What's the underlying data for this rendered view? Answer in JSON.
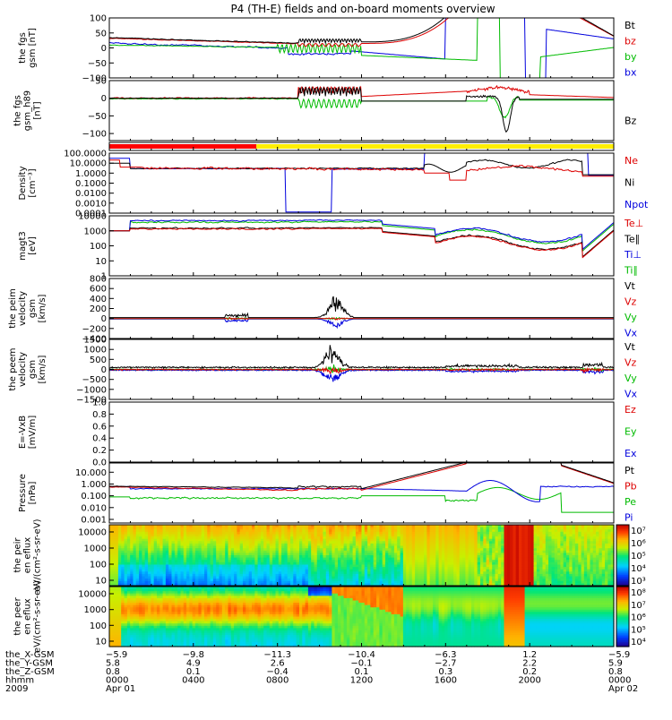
{
  "title": "P4 (TH-E) fields and on-board moments overview",
  "chart_data": [
    {
      "type": "line",
      "ylabel": "the fgs gsm [nT]",
      "ylim": [
        -100,
        100
      ],
      "ytick_labels": [
        "100",
        "50",
        "0",
        "−50",
        "−100"
      ],
      "legend": [
        "Bt",
        "bz",
        "by",
        "bx"
      ],
      "legend_colors": [
        "#000000",
        "#dd0000",
        "#00bb00",
        "#0000dd"
      ]
    },
    {
      "type": "line",
      "ylabel": "the fgs gsm_h89 [nT]",
      "ylim": [
        -120,
        50
      ],
      "ytick_labels": [
        "50",
        "0",
        "−50",
        "−100"
      ],
      "legend": [
        "Bz"
      ],
      "legend_colors": [
        "#000000"
      ]
    },
    {
      "type": "status_bar",
      "segments": [
        {
          "from_hour": 0,
          "to_hour": 7,
          "color": "#ff0000"
        },
        {
          "from_hour": 7,
          "to_hour": 24,
          "color": "#ffee00"
        }
      ]
    },
    {
      "type": "line",
      "yscale": "log",
      "ylabel": "Density [cm⁻³]",
      "ylim": [
        0.0001,
        100
      ],
      "ytick_labels": [
        "100.0000",
        "10.0000",
        "1.0000",
        "0.1000",
        "0.0100",
        "0.0010",
        "0.0001"
      ],
      "legend": [
        "Ne",
        "Ni",
        "Npot"
      ],
      "legend_colors": [
        "#dd0000",
        "#000000",
        "#0000dd"
      ]
    },
    {
      "type": "line",
      "yscale": "log",
      "ylabel": "magt3 [eV]",
      "ylim": [
        1,
        10000
      ],
      "ytick_labels": [
        "10000",
        "1000",
        "100",
        "10",
        "1"
      ],
      "legend": [
        "Te⊥",
        "Te∥",
        "Ti⊥",
        "Ti∥"
      ],
      "legend_colors": [
        "#dd0000",
        "#000000",
        "#0000dd",
        "#00bb00"
      ]
    },
    {
      "type": "line",
      "ylabel": "the peim velocity gsm [km/s]",
      "ylim": [
        -400,
        800
      ],
      "ytick_labels": [
        "800",
        "600",
        "400",
        "200",
        "0",
        "−200",
        "−400"
      ],
      "legend": [
        "Vt",
        "Vz",
        "Vy",
        "Vx"
      ],
      "legend_colors": [
        "#000000",
        "#dd0000",
        "#00bb00",
        "#0000dd"
      ]
    },
    {
      "type": "line",
      "ylabel": "the peem velocity gsm [km/s]",
      "ylim": [
        -1500,
        1500
      ],
      "ytick_labels": [
        "1500",
        "1000",
        "500",
        "0",
        "−500",
        "−1000",
        "−1500"
      ],
      "legend": [
        "Vt",
        "Vz",
        "Vy",
        "Vx"
      ],
      "legend_colors": [
        "#000000",
        "#dd0000",
        "#00bb00",
        "#0000dd"
      ]
    },
    {
      "type": "line",
      "ylabel": "E=-VxB [mV/m]",
      "ylim": [
        0,
        1
      ],
      "ytick_labels": [
        "1.0",
        "0.8",
        "0.6",
        "0.4",
        "0.2",
        "0.0"
      ],
      "legend": [
        "Ez",
        "Ey",
        "Ex"
      ],
      "legend_colors": [
        "#dd0000",
        "#00bb00",
        "#0000dd"
      ]
    },
    {
      "type": "line",
      "yscale": "log",
      "ylabel": "Pressure [nPa]",
      "ylim": [
        0.0005,
        60
      ],
      "ytick_labels": [
        "10.000",
        "1.000",
        "0.100",
        "0.010",
        "0.001"
      ],
      "legend": [
        "Pt",
        "Pb",
        "Pe",
        "Pi"
      ],
      "legend_colors": [
        "#000000",
        "#dd0000",
        "#00bb00",
        "#0000dd"
      ]
    },
    {
      "type": "heatmap",
      "yscale": "log",
      "ylabel": "the peir en eflux eV/(cm²-s-sr-eV)",
      "ylim": [
        8,
        20000
      ],
      "ytick_labels": [
        "10000",
        "1000",
        "100",
        "10"
      ],
      "colorbar_range": [
        1000,
        10000000
      ],
      "colorbar_labels": [
        "10⁷",
        "10⁶",
        "10⁵",
        "10⁴",
        "10³"
      ]
    },
    {
      "type": "heatmap",
      "yscale": "log",
      "ylabel": "the peer en eflux eV/(cm²-s-sr-eV)",
      "ylim": [
        8,
        20000
      ],
      "ytick_labels": [
        "10000",
        "1000",
        "100",
        "10"
      ],
      "colorbar_range": [
        10000,
        100000000
      ],
      "colorbar_labels": [
        "10⁸",
        "10⁷",
        "10⁶",
        "10⁵",
        "10⁴"
      ]
    }
  ],
  "x_axis": {
    "xlim_hours": [
      0,
      24
    ],
    "tick_hours": [
      0,
      4,
      8,
      12,
      16,
      20,
      24
    ],
    "rows": [
      {
        "label": "the_X-GSM",
        "values": [
          "−5.9",
          "−9.8",
          "−11.3",
          "−10.4",
          "−6.3",
          "1.2",
          "−5.9"
        ]
      },
      {
        "label": "the_Y-GSM",
        "values": [
          "5.8",
          "4.9",
          "2.6",
          "−0.1",
          "−2.7",
          "2.2",
          "5.9"
        ]
      },
      {
        "label": "the_Z-GSM",
        "values": [
          "0.8",
          "0.1",
          "−0.4",
          "0.1",
          "0.3",
          "0.2",
          "0.8"
        ]
      },
      {
        "label": "hhmm",
        "values": [
          "0000",
          "0400",
          "0800",
          "1200",
          "1600",
          "2000",
          "0000"
        ]
      },
      {
        "label": "2009",
        "values": [
          "Apr 01",
          "",
          "",
          "",
          "",
          "",
          "Apr 02"
        ]
      }
    ]
  }
}
